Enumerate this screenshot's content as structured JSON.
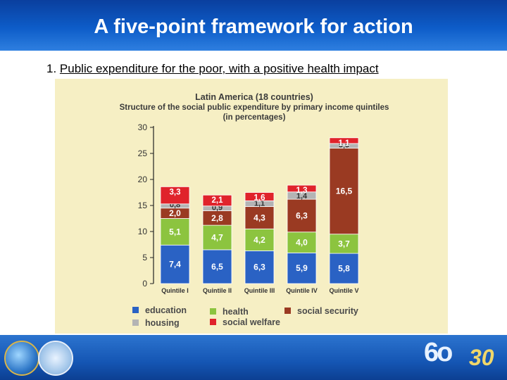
{
  "slide": {
    "title": "A five-point framework for action",
    "subtitle_number": "1.",
    "subtitle_text": "Public expenditure for the poor, with a positive health impact"
  },
  "chart_data": {
    "type": "bar",
    "stacked": true,
    "title": "Latin America (18 countries)",
    "subtitle": "Structure of the social public expenditure by primary income quintiles",
    "subtitle2": "(in percentages)",
    "categories": [
      "Quintile I",
      "Quintile II",
      "Quintile III",
      "Quintile IV",
      "Quintile V"
    ],
    "ylim": [
      0,
      30
    ],
    "yticks": [
      0,
      5,
      10,
      15,
      20,
      25,
      30
    ],
    "series": [
      {
        "name": "education",
        "color": "#2a62c4",
        "values": [
          7.4,
          6.5,
          6.3,
          5.9,
          5.8
        ],
        "labels": [
          "7,4",
          "6,5",
          "6,3",
          "5,9",
          "5,8"
        ]
      },
      {
        "name": "health",
        "color": "#8cc43f",
        "values": [
          5.1,
          4.7,
          4.2,
          4.0,
          3.7
        ],
        "labels": [
          "5,1",
          "4,7",
          "4,2",
          "4,0",
          "3,7"
        ]
      },
      {
        "name": "social security",
        "color": "#9a3a22",
        "values": [
          2.0,
          2.8,
          4.3,
          6.3,
          16.5
        ],
        "labels": [
          "2,0",
          "2,8",
          "4,3",
          "6,3",
          "16,5"
        ]
      },
      {
        "name": "housing",
        "color": "#b4b4b4",
        "values": [
          0.8,
          0.9,
          1.1,
          1.4,
          0.9
        ],
        "labels": [
          "0,8",
          "0,9",
          "1,1",
          "1,4",
          "0,9"
        ]
      },
      {
        "name": "social welfare",
        "color": "#e0232b",
        "values": [
          3.3,
          2.1,
          1.6,
          1.3,
          1.1
        ],
        "labels": [
          "3,3",
          "2,1",
          "1,6",
          "1,3",
          "1,1"
        ]
      }
    ],
    "legend": {
      "placement": "bottom",
      "order": [
        "education",
        "health",
        "social security",
        "housing",
        "social welfare"
      ]
    }
  }
}
